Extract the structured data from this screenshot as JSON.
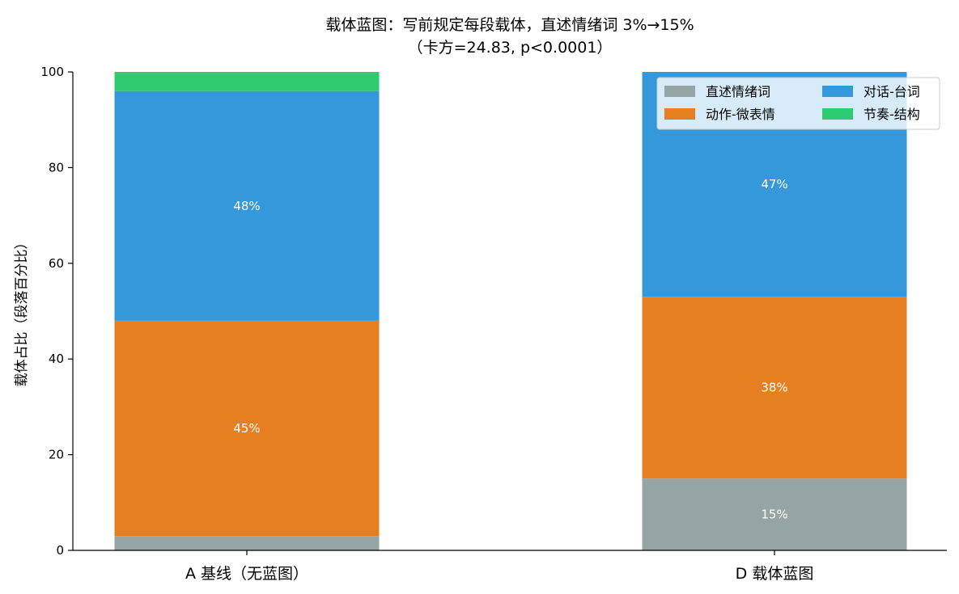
{
  "chart_data": {
    "type": "bar",
    "stacked": true,
    "title": "载体蓝图：写前规定每段载体，直述情绪词 3%→15%",
    "subtitle": "（卡方=24.83, p<0.0001）",
    "xlabel": "",
    "ylabel": "载体占比（段落百分比）",
    "ylim": [
      0,
      100
    ],
    "yticks": [
      0,
      20,
      40,
      60,
      80,
      100
    ],
    "grid": false,
    "legend_position": "top-right",
    "categories": [
      "A 基线（无蓝图）",
      "D 载体蓝图"
    ],
    "series": [
      {
        "name": "直述情绪词",
        "color": "#95a5a6",
        "values": [
          3,
          15
        ],
        "labels": [
          "",
          "15%"
        ]
      },
      {
        "name": "动作-微表情",
        "color": "#e67e22",
        "values": [
          45,
          38
        ],
        "labels": [
          "45%",
          "38%"
        ]
      },
      {
        "name": "对话-台词",
        "color": "#3498db",
        "values": [
          48,
          47
        ],
        "labels": [
          "48%",
          "47%"
        ]
      },
      {
        "name": "节奏-结构",
        "color": "#2ecc71",
        "values": [
          4,
          0
        ],
        "labels": [
          "",
          ""
        ]
      }
    ],
    "legend_order": [
      0,
      2,
      1,
      3
    ]
  }
}
